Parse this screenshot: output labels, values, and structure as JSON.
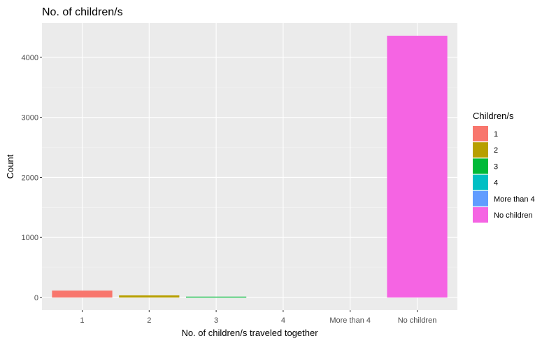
{
  "chart_data": {
    "type": "bar",
    "title": "No. of children/s",
    "xlabel": "No. of children/s traveled together",
    "ylabel": "Count",
    "categories": [
      "1",
      "2",
      "3",
      "4",
      "More than 4",
      "No children"
    ],
    "values": [
      115,
      35,
      10,
      0,
      0,
      4360
    ],
    "colors": [
      "#F8766D",
      "#B79F00",
      "#00BA38",
      "#00BFC4",
      "#619CFF",
      "#F564E3"
    ],
    "ylim": [
      -210,
      4570
    ],
    "yticks": [
      0,
      1000,
      2000,
      3000,
      4000
    ],
    "grid": true,
    "legend": {
      "title": "Children/s",
      "placement": "right",
      "items": [
        "1",
        "2",
        "3",
        "4",
        "More than 4",
        "No children"
      ]
    }
  }
}
